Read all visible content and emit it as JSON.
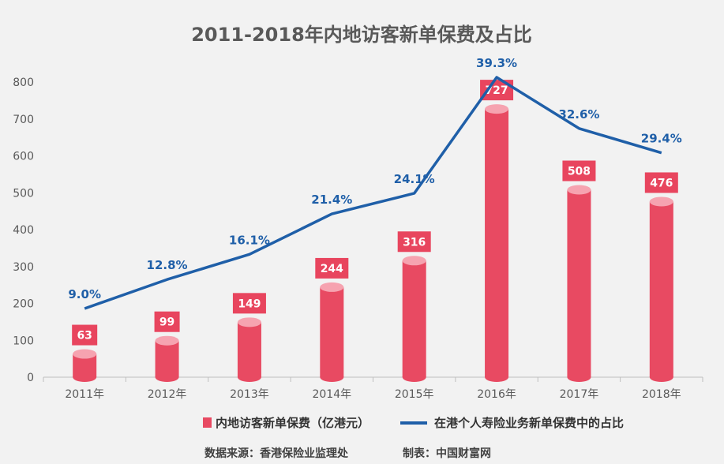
{
  "chart_data": {
    "type": "bar",
    "title": "2011-2018年内地访客新单保费及占比",
    "categories": [
      "2011年",
      "2012年",
      "2013年",
      "2014年",
      "2015年",
      "2016年",
      "2017年",
      "2018年"
    ],
    "series": [
      {
        "name": "内地访客新单保费（亿港元）",
        "type": "bar",
        "values": [
          63,
          99,
          149,
          244,
          316,
          727,
          508,
          476
        ],
        "labels": [
          "63",
          "99",
          "149",
          "244",
          "316",
          "727",
          "508",
          "476"
        ]
      },
      {
        "name": "在港个人寿险业务新单保费中的占比",
        "type": "line",
        "values": [
          9.0,
          12.8,
          16.1,
          21.4,
          24.1,
          39.3,
          32.6,
          29.4
        ],
        "labels": [
          "9.0%",
          "12.8%",
          "16.1%",
          "21.4%",
          "24.1%",
          "39.3%",
          "32.6%",
          "29.4%"
        ]
      }
    ],
    "y_ticks": [
      "0",
      "100",
      "200",
      "300",
      "400",
      "500",
      "600",
      "700",
      "800"
    ],
    "ylim": [
      0,
      800
    ],
    "legend_position": "bottom",
    "grid": false
  },
  "footer": {
    "source": "数据来源：香港保险业监理处",
    "maker": "制表：中国财富网"
  },
  "colors": {
    "bar": "#e84a62",
    "bar_top": "#f6a3b0",
    "label_bg": "#e8455e",
    "line": "#1f5fa8"
  }
}
